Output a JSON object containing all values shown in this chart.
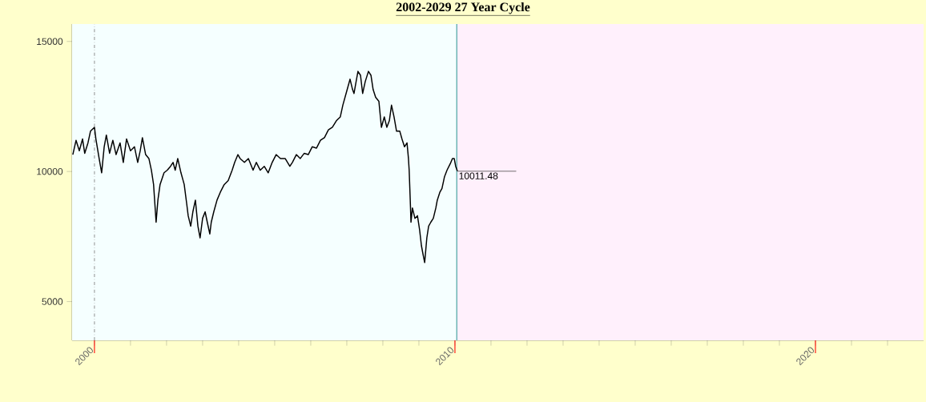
{
  "chart_data": {
    "type": "line",
    "title": "2002-2029 27 Year Cycle",
    "series": [
      {
        "color": "#000000",
        "x": [
          1999.4,
          1999.49,
          1999.58,
          1999.67,
          1999.73,
          1999.82,
          1999.89,
          2000.0,
          2000.04,
          2000.13,
          2000.2,
          2000.27,
          2000.33,
          2000.42,
          2000.51,
          2000.6,
          2000.71,
          2000.8,
          2000.89,
          2001.0,
          2001.11,
          2001.2,
          2001.27,
          2001.33,
          2001.42,
          2001.51,
          2001.58,
          2001.64,
          2001.71,
          2001.76,
          2001.82,
          2001.93,
          2002.02,
          2002.11,
          2002.18,
          2002.24,
          2002.31,
          2002.4,
          2002.49,
          2002.56,
          2002.6,
          2002.67,
          2002.73,
          2002.8,
          2002.87,
          2002.93,
          2003.0,
          2003.07,
          2003.13,
          2003.2,
          2003.24,
          2003.31,
          2003.4,
          2003.49,
          2003.6,
          2003.71,
          2003.82,
          2003.89,
          2003.98,
          2004.04,
          2004.16,
          2004.27,
          2004.4,
          2004.49,
          2004.6,
          2004.71,
          2004.82,
          2004.93,
          2005.04,
          2005.16,
          2005.29,
          2005.42,
          2005.49,
          2005.6,
          2005.71,
          2005.82,
          2005.93,
          2006.04,
          2006.16,
          2006.27,
          2006.38,
          2006.49,
          2006.6,
          2006.71,
          2006.82,
          2006.89,
          2006.98,
          2007.04,
          2007.09,
          2007.16,
          2007.2,
          2007.27,
          2007.31,
          2007.38,
          2007.44,
          2007.51,
          2007.6,
          2007.67,
          2007.73,
          2007.8,
          2007.89,
          2007.96,
          2008.04,
          2008.11,
          2008.18,
          2008.24,
          2008.31,
          2008.38,
          2008.47,
          2008.53,
          2008.6,
          2008.67,
          2008.71,
          2008.73,
          2008.76,
          2008.78,
          2008.82,
          2008.89,
          2008.96,
          2009.02,
          2009.07,
          2009.11,
          2009.16,
          2009.22,
          2009.27,
          2009.33,
          2009.4,
          2009.47,
          2009.51,
          2009.58,
          2009.64,
          2009.71,
          2009.78,
          2009.87,
          2009.93,
          2009.98,
          2010.02,
          2010.07
        ],
        "values": [
          10650,
          11200,
          10800,
          11250,
          10700,
          11100,
          11550,
          11700,
          11250,
          10500,
          9950,
          10950,
          11400,
          10700,
          11200,
          10650,
          11100,
          10350,
          11250,
          10800,
          10950,
          10350,
          10800,
          11300,
          10650,
          10500,
          10050,
          9500,
          8050,
          8900,
          9500,
          9950,
          10050,
          10200,
          10350,
          10050,
          10500,
          9950,
          9500,
          8750,
          8300,
          7900,
          8450,
          8900,
          7900,
          7450,
          8200,
          8450,
          8050,
          7600,
          8050,
          8450,
          8900,
          9200,
          9500,
          9650,
          10050,
          10350,
          10650,
          10500,
          10350,
          10500,
          10050,
          10350,
          10050,
          10200,
          9950,
          10350,
          10650,
          10500,
          10500,
          10200,
          10350,
          10650,
          10500,
          10700,
          10650,
          10950,
          10900,
          11200,
          11300,
          11600,
          11700,
          11950,
          12100,
          12550,
          13000,
          13300,
          13550,
          13150,
          13000,
          13550,
          13850,
          13700,
          13000,
          13450,
          13850,
          13700,
          13150,
          12850,
          12700,
          11700,
          12100,
          11700,
          11950,
          12550,
          12100,
          11550,
          11550,
          11250,
          10950,
          11100,
          10500,
          10050,
          8900,
          8050,
          8600,
          8200,
          8300,
          7750,
          7150,
          6850,
          6500,
          7450,
          7900,
          8050,
          8200,
          8600,
          8900,
          9200,
          9350,
          9800,
          10050,
          10300,
          10500,
          10500,
          10200,
          10011.48
        ]
      }
    ],
    "xlim": [
      1999.38,
      2023.0
    ],
    "ylim": [
      3510,
      15670
    ],
    "xticks": [
      2000,
      {
        "value": 2001,
        "label": null
      },
      {
        "value": 2002,
        "label": null
      },
      {
        "value": 2003,
        "label": null
      },
      {
        "value": 2004,
        "label": null
      },
      {
        "value": 2005,
        "label": null
      },
      {
        "value": 2006,
        "label": null
      },
      {
        "value": 2007,
        "label": null
      },
      {
        "value": 2008,
        "label": null
      },
      {
        "value": 2009,
        "label": null
      },
      2010,
      {
        "value": 2011,
        "label": null
      },
      {
        "value": 2012,
        "label": null
      },
      {
        "value": 2013,
        "label": null
      },
      {
        "value": 2014,
        "label": null
      },
      {
        "value": 2015,
        "label": null
      },
      {
        "value": 2016,
        "label": null
      },
      {
        "value": 2017,
        "label": null
      },
      {
        "value": 2018,
        "label": null
      },
      {
        "value": 2019,
        "label": null
      },
      2020,
      {
        "value": 2021,
        "label": null
      },
      {
        "value": 2022,
        "label": null
      }
    ],
    "yticks": [
      5000,
      10000,
      15000
    ],
    "bands": [
      {
        "axis": "x",
        "from": 1999.38,
        "to": 2010.05,
        "color": "#f5ffff"
      },
      {
        "axis": "x",
        "from": 2010.05,
        "to": 2023.0,
        "color": "#fff0fc"
      }
    ],
    "ref_lines": [
      {
        "axis": "x",
        "value": 2000,
        "color": "#999999",
        "line_style": "dashdotted"
      },
      {
        "axis": "x",
        "value": 2010.05,
        "color": "#339999",
        "line_style": "solid"
      }
    ],
    "annotations": [
      {
        "text": "10011.48",
        "x": 2010.07,
        "y": 10011.48
      }
    ],
    "marker": "none",
    "line_style": "solid"
  }
}
